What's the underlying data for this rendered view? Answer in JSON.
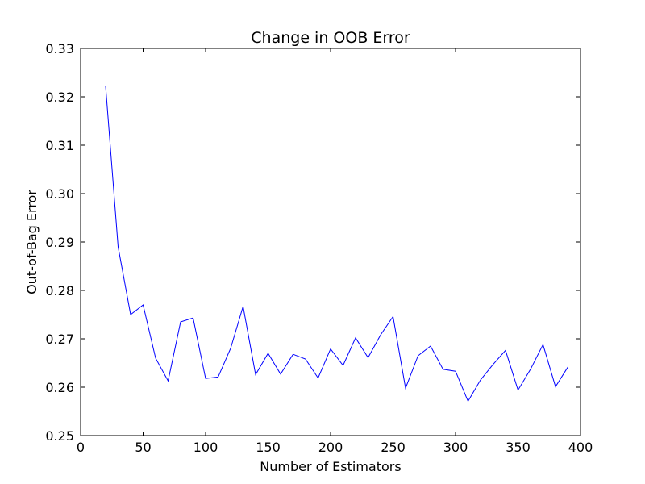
{
  "chart_data": {
    "type": "line",
    "title": "Change in OOB Error",
    "xlabel": "Number of Estimators",
    "ylabel": "Out-of-Bag Error",
    "xlim": [
      0,
      400
    ],
    "ylim": [
      0.25,
      0.33
    ],
    "grid": false,
    "legend": "none",
    "x_ticks": [
      0,
      50,
      100,
      150,
      200,
      250,
      300,
      350,
      400
    ],
    "x_tick_labels": [
      "0",
      "50",
      "100",
      "150",
      "200",
      "250",
      "300",
      "350",
      "400"
    ],
    "y_ticks": [
      0.25,
      0.26,
      0.27,
      0.28,
      0.29,
      0.3,
      0.31,
      0.32,
      0.33
    ],
    "y_tick_labels": [
      "0.25",
      "0.26",
      "0.27",
      "0.28",
      "0.29",
      "0.30",
      "0.31",
      "0.32",
      "0.33"
    ],
    "line_color": "#0000ff",
    "series": [
      {
        "x": [
          20,
          30,
          40,
          50,
          60,
          70,
          80,
          90,
          100,
          110,
          120,
          130,
          140,
          150,
          160,
          170,
          180,
          190,
          200,
          210,
          220,
          230,
          240,
          250,
          260,
          270,
          280,
          290,
          300,
          310,
          320,
          330,
          340,
          350,
          360,
          370,
          380,
          390
        ],
        "values": [
          0.3222,
          0.289,
          0.275,
          0.277,
          0.266,
          0.2613,
          0.2735,
          0.2743,
          0.2618,
          0.2621,
          0.268,
          0.2767,
          0.2626,
          0.267,
          0.2627,
          0.2668,
          0.2658,
          0.2619,
          0.2679,
          0.2645,
          0.2702,
          0.2661,
          0.2708,
          0.2746,
          0.2598,
          0.2665,
          0.2685,
          0.2637,
          0.2633,
          0.2571,
          0.2615,
          0.2647,
          0.2676,
          0.2594,
          0.2637,
          0.2688,
          0.2601,
          0.2642
        ]
      }
    ]
  }
}
